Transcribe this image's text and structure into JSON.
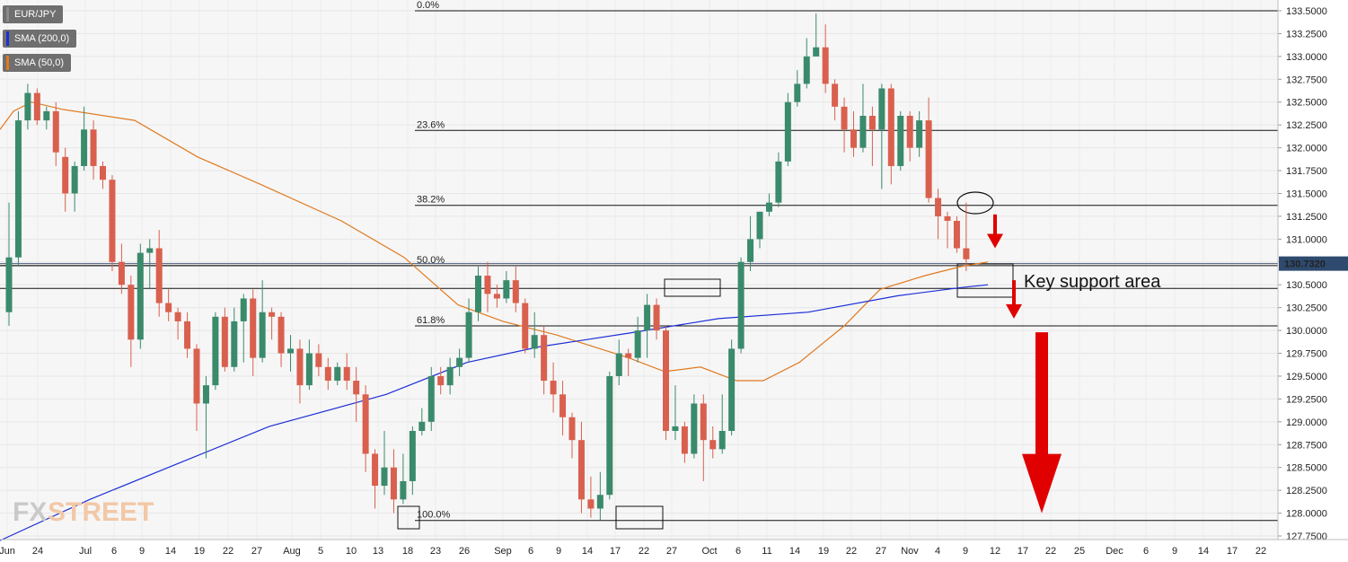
{
  "chart_data": {
    "type": "candlestick",
    "symbol": "EUR/JPY",
    "indicators": [
      {
        "name": "SMA (200,0)",
        "color": "#1c2fd6"
      },
      {
        "name": "SMA (50,0)",
        "color": "#e07a1f"
      }
    ],
    "ylim": [
      127.75,
      133.6
    ],
    "y_ticks": [
      "133.5000",
      "133.2500",
      "133.0000",
      "132.7500",
      "132.5000",
      "132.2500",
      "132.0000",
      "131.7500",
      "131.5000",
      "131.2500",
      "131.0000",
      "130.7500",
      "130.5000",
      "130.2500",
      "130.0000",
      "129.7500",
      "129.5000",
      "129.2500",
      "129.0000",
      "128.7500",
      "128.5000",
      "128.2500",
      "128.0000",
      "127.7500"
    ],
    "x_ticks": [
      "Jun",
      "24",
      "Jul",
      "6",
      "9",
      "14",
      "19",
      "22",
      "27",
      "Aug",
      "5",
      "10",
      "13",
      "18",
      "23",
      "26",
      "Sep",
      "6",
      "9",
      "14",
      "17",
      "22",
      "27",
      "Oct",
      "6",
      "11",
      "14",
      "19",
      "22",
      "27",
      "Nov",
      "4",
      "9",
      "12",
      "17",
      "22",
      "25",
      "Dec",
      "6",
      "9",
      "14",
      "17",
      "22"
    ],
    "current_price": "130.7320",
    "fibonacci": [
      {
        "label": "0.0%",
        "price": 133.5
      },
      {
        "label": "23.6%",
        "price": 132.19
      },
      {
        "label": "38.2%",
        "price": 131.37
      },
      {
        "label": "50.0%",
        "price": 130.71
      },
      {
        "label": "61.8%",
        "price": 130.05
      },
      {
        "label": "100.0%",
        "price": 127.92
      }
    ],
    "horizontal_levels": [
      130.46
    ],
    "annotation": "Key support area",
    "candles": [
      [
        130.2,
        130.8,
        130.05,
        131.4
      ],
      [
        130.8,
        132.3,
        130.7,
        132.4
      ],
      [
        132.3,
        132.6,
        132.2,
        132.7
      ],
      [
        132.6,
        132.3,
        132.25,
        132.65
      ],
      [
        132.3,
        132.4,
        132.2,
        132.45
      ],
      [
        132.4,
        131.95,
        131.8,
        132.5
      ],
      [
        131.9,
        131.5,
        131.3,
        132.0
      ],
      [
        131.5,
        131.8,
        131.3,
        131.85
      ],
      [
        131.8,
        132.2,
        131.75,
        132.45
      ],
      [
        132.2,
        131.8,
        131.65,
        132.3
      ],
      [
        131.8,
        131.65,
        131.55,
        131.85
      ],
      [
        131.65,
        130.75,
        130.65,
        131.7
      ],
      [
        130.75,
        130.5,
        130.4,
        130.95
      ],
      [
        130.5,
        129.9,
        129.6,
        130.6
      ],
      [
        129.9,
        130.85,
        129.8,
        130.95
      ],
      [
        130.85,
        130.9,
        130.45,
        131.0
      ],
      [
        130.9,
        130.3,
        130.15,
        131.1
      ],
      [
        130.3,
        130.2,
        130.1,
        130.45
      ],
      [
        130.2,
        130.1,
        129.9,
        130.25
      ],
      [
        130.1,
        129.8,
        129.7,
        130.2
      ],
      [
        129.8,
        129.2,
        128.9,
        129.85
      ],
      [
        129.2,
        129.4,
        128.6,
        129.5
      ],
      [
        129.4,
        130.15,
        129.35,
        130.2
      ],
      [
        130.15,
        129.6,
        129.55,
        130.25
      ],
      [
        129.6,
        130.1,
        129.55,
        130.25
      ],
      [
        130.1,
        130.35,
        129.65,
        130.4
      ],
      [
        130.35,
        129.7,
        129.5,
        130.45
      ],
      [
        129.7,
        130.2,
        129.65,
        130.55
      ],
      [
        130.2,
        130.15,
        129.9,
        130.25
      ],
      [
        130.15,
        129.75,
        129.6,
        130.2
      ],
      [
        129.75,
        129.8,
        129.55,
        129.95
      ],
      [
        129.8,
        129.4,
        129.2,
        129.9
      ],
      [
        129.4,
        129.75,
        129.35,
        129.9
      ],
      [
        129.75,
        129.6,
        129.5,
        129.85
      ],
      [
        129.6,
        129.45,
        129.35,
        129.7
      ],
      [
        129.45,
        129.6,
        129.4,
        129.65
      ],
      [
        129.6,
        129.45,
        129.35,
        129.75
      ],
      [
        129.45,
        129.3,
        129.0,
        129.6
      ],
      [
        129.3,
        128.65,
        128.45,
        129.4
      ],
      [
        128.65,
        128.3,
        128.05,
        128.7
      ],
      [
        128.3,
        128.5,
        128.2,
        128.9
      ],
      [
        128.5,
        128.15,
        128.0,
        128.7
      ],
      [
        128.15,
        128.35,
        128.1,
        128.65
      ],
      [
        128.35,
        128.9,
        128.2,
        128.95
      ],
      [
        128.9,
        129.0,
        128.85,
        129.15
      ],
      [
        129.0,
        129.5,
        128.9,
        129.6
      ],
      [
        129.5,
        129.4,
        129.3,
        129.6
      ],
      [
        129.4,
        129.6,
        129.3,
        129.7
      ],
      [
        129.6,
        129.7,
        129.5,
        129.8
      ],
      [
        129.7,
        130.2,
        129.65,
        130.35
      ],
      [
        130.2,
        130.6,
        130.1,
        130.7
      ],
      [
        130.6,
        130.4,
        130.2,
        130.75
      ],
      [
        130.4,
        130.35,
        130.25,
        130.5
      ],
      [
        130.35,
        130.55,
        130.3,
        130.65
      ],
      [
        130.55,
        130.3,
        130.2,
        130.7
      ],
      [
        130.3,
        129.8,
        129.75,
        130.35
      ],
      [
        129.8,
        129.95,
        129.7,
        130.2
      ],
      [
        129.95,
        129.45,
        129.3,
        130.05
      ],
      [
        129.45,
        129.3,
        129.1,
        129.65
      ],
      [
        129.3,
        129.05,
        128.85,
        129.45
      ],
      [
        129.05,
        128.8,
        128.6,
        129.1
      ],
      [
        128.8,
        128.15,
        128.0,
        129.0
      ],
      [
        128.15,
        128.05,
        127.95,
        128.4
      ],
      [
        128.05,
        128.2,
        127.92,
        128.45
      ],
      [
        128.2,
        129.5,
        128.15,
        129.55
      ],
      [
        129.5,
        129.75,
        129.4,
        129.9
      ],
      [
        129.75,
        129.7,
        129.5,
        129.8
      ],
      [
        129.7,
        130.0,
        129.65,
        130.15
      ],
      [
        130.0,
        130.28,
        129.7,
        130.4
      ],
      [
        130.28,
        130.0,
        129.9,
        130.35
      ],
      [
        130.0,
        128.9,
        128.8,
        130.05
      ],
      [
        128.9,
        128.95,
        128.8,
        129.4
      ],
      [
        128.95,
        128.65,
        128.55,
        129.0
      ],
      [
        128.65,
        129.2,
        128.6,
        129.3
      ],
      [
        129.2,
        128.8,
        128.35,
        129.3
      ],
      [
        128.8,
        128.7,
        128.6,
        128.95
      ],
      [
        128.7,
        128.9,
        128.65,
        129.3
      ],
      [
        128.9,
        129.8,
        128.85,
        129.9
      ],
      [
        129.8,
        130.75,
        129.75,
        130.8
      ],
      [
        130.75,
        131.0,
        130.65,
        131.25
      ],
      [
        131.0,
        131.3,
        130.9,
        131.3
      ],
      [
        131.3,
        131.4,
        131.25,
        131.5
      ],
      [
        131.4,
        131.85,
        131.35,
        131.95
      ],
      [
        131.85,
        132.5,
        131.8,
        132.6
      ],
      [
        132.5,
        132.7,
        132.45,
        132.85
      ],
      [
        132.7,
        133.0,
        132.65,
        133.2
      ],
      [
        133.0,
        133.1,
        133.05,
        133.47
      ],
      [
        133.1,
        132.7,
        132.6,
        133.35
      ],
      [
        132.7,
        132.45,
        132.3,
        132.75
      ],
      [
        132.45,
        132.2,
        131.95,
        132.55
      ],
      [
        132.2,
        132.0,
        131.9,
        132.4
      ],
      [
        132.0,
        132.35,
        131.95,
        132.7
      ],
      [
        132.35,
        132.2,
        131.8,
        132.45
      ],
      [
        132.2,
        132.65,
        131.55,
        132.7
      ],
      [
        132.65,
        131.8,
        131.6,
        132.7
      ],
      [
        131.8,
        132.35,
        131.75,
        132.4
      ],
      [
        132.35,
        132.0,
        131.85,
        132.4
      ],
      [
        132.0,
        132.3,
        131.9,
        132.4
      ],
      [
        132.3,
        131.45,
        131.4,
        132.55
      ],
      [
        131.45,
        131.25,
        131.0,
        131.55
      ],
      [
        131.25,
        131.2,
        130.9,
        131.3
      ],
      [
        131.2,
        130.9,
        130.85,
        131.25
      ],
      [
        130.9,
        130.78,
        130.65,
        131.4
      ]
    ],
    "sma50": [
      [
        0,
        132.2
      ],
      [
        15,
        132.4
      ],
      [
        35,
        132.5
      ],
      [
        70,
        132.42
      ],
      [
        150,
        132.3
      ],
      [
        220,
        131.9
      ],
      [
        290,
        131.6
      ],
      [
        380,
        131.2
      ],
      [
        450,
        130.8
      ],
      [
        510,
        130.28
      ],
      [
        560,
        130.1
      ],
      [
        620,
        129.95
      ],
      [
        700,
        129.7
      ],
      [
        740,
        129.55
      ],
      [
        780,
        129.6
      ],
      [
        820,
        129.45
      ],
      [
        850,
        129.45
      ],
      [
        890,
        129.65
      ],
      [
        940,
        130.05
      ],
      [
        980,
        130.45
      ],
      [
        1030,
        130.6
      ],
      [
        1070,
        130.7
      ],
      [
        1100,
        130.75
      ]
    ],
    "sma200": [
      [
        0,
        127.7
      ],
      [
        100,
        128.15
      ],
      [
        200,
        128.55
      ],
      [
        300,
        128.95
      ],
      [
        430,
        129.3
      ],
      [
        520,
        129.65
      ],
      [
        600,
        129.82
      ],
      [
        700,
        129.97
      ],
      [
        800,
        130.13
      ],
      [
        900,
        130.2
      ],
      [
        1000,
        130.38
      ],
      [
        1070,
        130.47
      ],
      [
        1100,
        130.5
      ]
    ],
    "arrows": [
      {
        "color": "#e00000",
        "from": 131.27,
        "to": 130.9,
        "size": "small"
      },
      {
        "color": "#e00000",
        "from": 130.55,
        "to": 130.13,
        "size": "small"
      },
      {
        "color": "#e00000",
        "from": 129.98,
        "to": 128.0,
        "size": "large"
      }
    ],
    "grid": true,
    "legend_position": "top-left"
  },
  "branding": {
    "logo_left": "FX",
    "logo_right": "STREET"
  }
}
